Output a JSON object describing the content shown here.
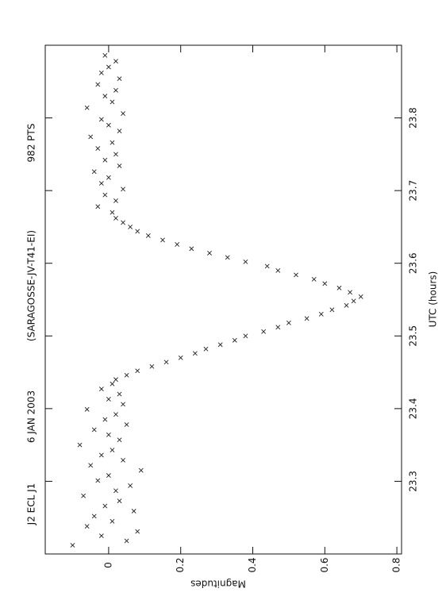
{
  "chart_data": {
    "type": "scatter",
    "title": "J2 ECL J1",
    "annotations": [
      "6 JAN 2003",
      "(SARAGOSSE-JV-T41-EI)",
      "982 PTS"
    ],
    "xlabel": "UTC (hours)",
    "ylabel": "Magnitudes",
    "xlim": [
      23.2,
      23.9
    ],
    "xticks": [
      23.3,
      23.4,
      23.5,
      23.6,
      23.7,
      23.8
    ],
    "ylim": [
      -0.176,
      0.813
    ],
    "yticks": [
      0,
      0.2,
      0.4,
      0.6,
      0.8
    ],
    "color": "#222222",
    "series": [
      {
        "name": "J2 ECL J1",
        "x": [
          23.212,
          23.218,
          23.225,
          23.231,
          23.238,
          23.245,
          23.252,
          23.259,
          23.266,
          23.273,
          23.28,
          23.287,
          23.294,
          23.301,
          23.308,
          23.315,
          23.322,
          23.329,
          23.336,
          23.343,
          23.35,
          23.357,
          23.364,
          23.371,
          23.378,
          23.385,
          23.392,
          23.399,
          23.406,
          23.413,
          23.42,
          23.427,
          23.434,
          23.44,
          23.446,
          23.452,
          23.458,
          23.464,
          23.47,
          23.476,
          23.482,
          23.488,
          23.494,
          23.5,
          23.506,
          23.512,
          23.518,
          23.524,
          23.53,
          23.536,
          23.542,
          23.548,
          23.554,
          23.56,
          23.566,
          23.572,
          23.578,
          23.584,
          23.59,
          23.596,
          23.602,
          23.608,
          23.614,
          23.62,
          23.626,
          23.632,
          23.638,
          23.644,
          23.65,
          23.656,
          23.662,
          23.67,
          23.678,
          23.686,
          23.694,
          23.702,
          23.71,
          23.718,
          23.726,
          23.734,
          23.742,
          23.75,
          23.758,
          23.766,
          23.774,
          23.782,
          23.79,
          23.798,
          23.806,
          23.814,
          23.822,
          23.83,
          23.838,
          23.846,
          23.854,
          23.862,
          23.87,
          23.878,
          23.886
        ],
        "values": [
          -0.1,
          0.05,
          -0.02,
          0.08,
          -0.06,
          0.01,
          -0.04,
          0.07,
          -0.01,
          0.03,
          -0.07,
          0.02,
          0.06,
          -0.03,
          0.0,
          0.09,
          -0.05,
          0.04,
          -0.02,
          0.01,
          -0.08,
          0.03,
          0.0,
          -0.04,
          0.05,
          -0.01,
          0.02,
          -0.06,
          0.04,
          0.0,
          0.03,
          -0.02,
          0.01,
          0.02,
          0.05,
          0.08,
          0.12,
          0.16,
          0.2,
          0.24,
          0.27,
          0.31,
          0.35,
          0.38,
          0.43,
          0.47,
          0.5,
          0.55,
          0.59,
          0.62,
          0.66,
          0.68,
          0.7,
          0.67,
          0.64,
          0.6,
          0.57,
          0.52,
          0.47,
          0.44,
          0.38,
          0.33,
          0.28,
          0.23,
          0.19,
          0.15,
          0.11,
          0.08,
          0.06,
          0.04,
          0.02,
          0.01,
          -0.03,
          0.02,
          -0.01,
          0.04,
          -0.02,
          0.0,
          -0.04,
          0.03,
          -0.01,
          0.02,
          -0.03,
          0.01,
          -0.05,
          0.03,
          0.0,
          -0.02,
          0.04,
          -0.06,
          0.01,
          -0.01,
          0.02,
          -0.03,
          0.03,
          -0.02,
          0.0,
          0.02,
          -0.01
        ]
      }
    ]
  }
}
